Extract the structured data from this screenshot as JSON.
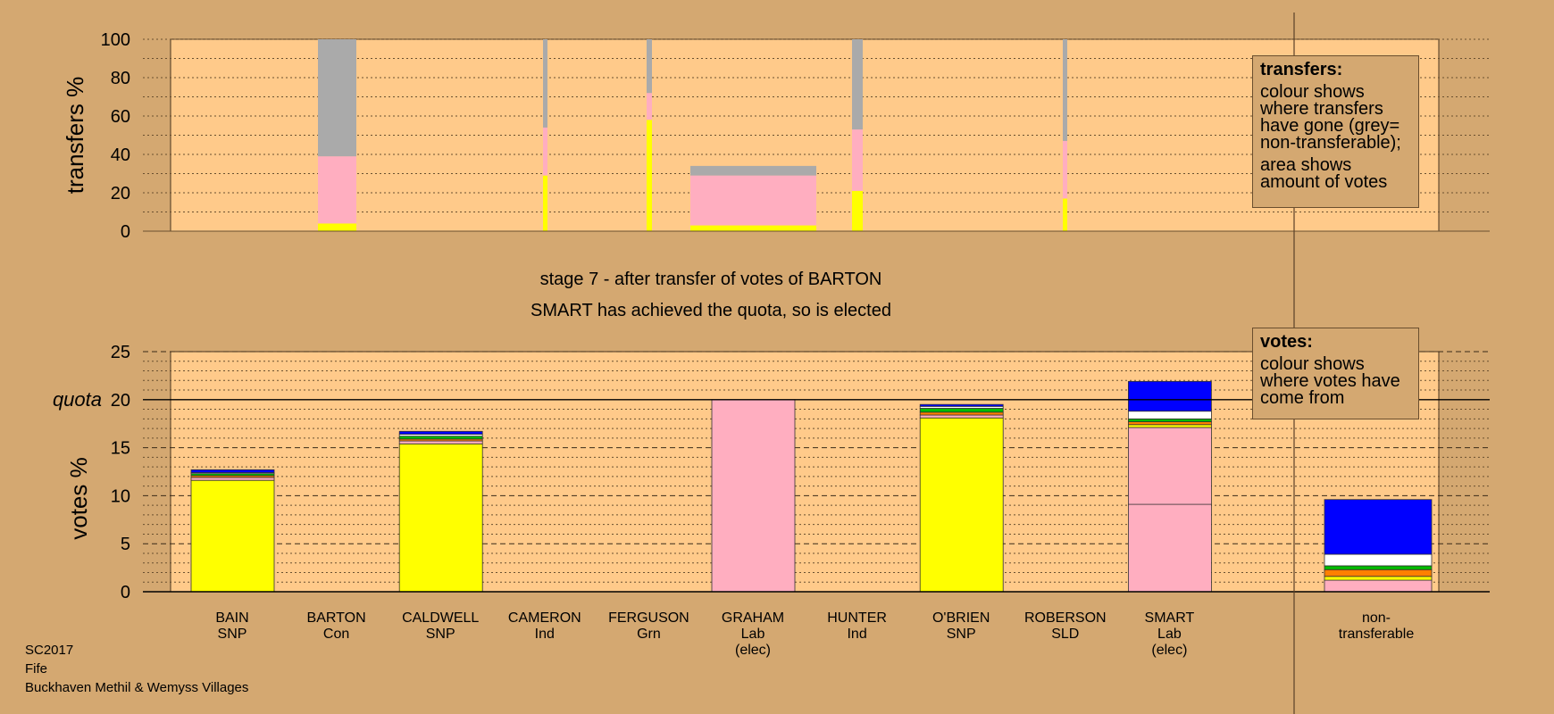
{
  "stage_title": "stage 7 - after transfer of votes of BARTON",
  "stage_subtitle": "SMART has achieved the quota, so is elected",
  "legend_transfers": {
    "title": "transfers:",
    "p1": "colour shows where transfers have gone (grey= non-transferable);",
    "p2": "area shows amount of votes"
  },
  "legend_votes": {
    "title": "votes:",
    "p1": "colour shows where votes have come from"
  },
  "footer": {
    "line1": "SC2017",
    "line2": "Fife",
    "line3": "Buckhaven Methil & Wemyss Villages"
  },
  "colors": {
    "background": "#d4a871",
    "plot": "#ffca8a",
    "SNP": "#ffff00",
    "Lab": "#ffaec0",
    "Con": "#0000ff",
    "Grn": "#00bb00",
    "Ind": "#ff8000",
    "SLD": "#ffffff",
    "nontransferable": "#aaaaaa"
  },
  "candidates": [
    {
      "name": "BAIN",
      "party": "SNP",
      "status": ""
    },
    {
      "name": "BARTON",
      "party": "Con",
      "status": ""
    },
    {
      "name": "CALDWELL",
      "party": "SNP",
      "status": ""
    },
    {
      "name": "CAMERON",
      "party": "Ind",
      "status": ""
    },
    {
      "name": "FERGUSON",
      "party": "Grn",
      "status": ""
    },
    {
      "name": "GRAHAM",
      "party": "Lab",
      "status": "(elec)"
    },
    {
      "name": "HUNTER",
      "party": "Ind",
      "status": ""
    },
    {
      "name": "O'BRIEN",
      "party": "SNP",
      "status": ""
    },
    {
      "name": "ROBERSON",
      "party": "SLD",
      "status": ""
    },
    {
      "name": "SMART",
      "party": "Lab",
      "status": "(elec)"
    }
  ],
  "nontransferable_label": [
    "non-",
    "transferable"
  ],
  "chart_data": [
    {
      "type": "bar",
      "ylabel": "transfers %",
      "ylim": [
        0,
        100
      ],
      "yticks": [
        0,
        20,
        40,
        60,
        80,
        100
      ],
      "grid": true,
      "note": "stacked transfer bars, bar width proportional to votes transferred",
      "transfers": [
        {
          "from": "BARTON",
          "segments": [
            {
              "party": "SNP",
              "value": 4
            },
            {
              "party": "Lab",
              "value": 35
            },
            {
              "party": "nontransferable",
              "value": 61
            }
          ]
        },
        {
          "from": "CAMERON",
          "segments": [
            {
              "party": "SNP",
              "value": 29
            },
            {
              "party": "Lab",
              "value": 25
            },
            {
              "party": "nontransferable",
              "value": 46
            }
          ]
        },
        {
          "from": "FERGUSON",
          "segments": [
            {
              "party": "SNP",
              "value": 58
            },
            {
              "party": "Lab",
              "value": 14
            },
            {
              "party": "nontransferable",
              "value": 28
            }
          ]
        },
        {
          "from": "GRAHAM",
          "segments": [
            {
              "party": "SNP",
              "value": 3
            },
            {
              "party": "Lab",
              "value": 26
            },
            {
              "party": "nontransferable",
              "value": 5
            }
          ]
        },
        {
          "from": "HUNTER",
          "segments": [
            {
              "party": "SNP",
              "value": 21
            },
            {
              "party": "Lab",
              "value": 32
            },
            {
              "party": "nontransferable",
              "value": 47
            }
          ]
        },
        {
          "from": "ROBERSON",
          "segments": [
            {
              "party": "SNP",
              "value": 17
            },
            {
              "party": "Lab",
              "value": 30
            },
            {
              "party": "nontransferable",
              "value": 53
            }
          ]
        }
      ]
    },
    {
      "type": "bar",
      "ylabel": "votes %",
      "ylim": [
        0,
        25
      ],
      "yticks": [
        0,
        5,
        10,
        15,
        20,
        25
      ],
      "quota": 20,
      "quota_label": "quota",
      "grid": true,
      "categories": [
        "BAIN",
        "BARTON",
        "CALDWELL",
        "CAMERON",
        "FERGUSON",
        "GRAHAM",
        "HUNTER",
        "O'BRIEN",
        "ROBERSON",
        "SMART",
        "non-transferable"
      ],
      "bars": [
        {
          "name": "BAIN",
          "segments": [
            {
              "party": "SNP",
              "value": 11.6
            },
            {
              "party": "Lab",
              "value": 0.3
            },
            {
              "party": "Ind",
              "value": 0.2
            },
            {
              "party": "Grn",
              "value": 0.2
            },
            {
              "party": "SLD",
              "value": 0.1
            },
            {
              "party": "Con",
              "value": 0.3
            }
          ]
        },
        {
          "name": "BARTON",
          "segments": []
        },
        {
          "name": "CALDWELL",
          "segments": [
            {
              "party": "SNP",
              "value": 15.4
            },
            {
              "party": "Lab",
              "value": 0.3
            },
            {
              "party": "Ind",
              "value": 0.2
            },
            {
              "party": "Grn",
              "value": 0.3
            },
            {
              "party": "SLD",
              "value": 0.2
            },
            {
              "party": "Con",
              "value": 0.3
            }
          ]
        },
        {
          "name": "CAMERON",
          "segments": []
        },
        {
          "name": "FERGUSON",
          "segments": []
        },
        {
          "name": "GRAHAM",
          "segments": [
            {
              "party": "Lab",
              "value": 20.0
            }
          ]
        },
        {
          "name": "HUNTER",
          "segments": []
        },
        {
          "name": "O'BRIEN",
          "segments": [
            {
              "party": "SNP",
              "value": 18.1
            },
            {
              "party": "Lab",
              "value": 0.3
            },
            {
              "party": "Ind",
              "value": 0.3
            },
            {
              "party": "Grn",
              "value": 0.4
            },
            {
              "party": "SLD",
              "value": 0.2
            },
            {
              "party": "Con",
              "value": 0.2
            }
          ]
        },
        {
          "name": "ROBERSON",
          "segments": []
        },
        {
          "name": "SMART",
          "segments": [
            {
              "party": "Lab",
              "value": 9.1
            },
            {
              "party": "Lab",
              "value": 8.0
            },
            {
              "party": "SNP",
              "value": 0.3
            },
            {
              "party": "Ind",
              "value": 0.3
            },
            {
              "party": "Grn",
              "value": 0.3
            },
            {
              "party": "SLD",
              "value": 0.8
            },
            {
              "party": "Con",
              "value": 3.1
            }
          ]
        },
        {
          "name": "non-transferable",
          "segments": [
            {
              "party": "Lab",
              "value": 1.2
            },
            {
              "party": "SNP",
              "value": 0.4
            },
            {
              "party": "Ind",
              "value": 0.7
            },
            {
              "party": "Grn",
              "value": 0.4
            },
            {
              "party": "SLD",
              "value": 1.2
            },
            {
              "party": "Con",
              "value": 5.7
            }
          ]
        }
      ]
    }
  ]
}
